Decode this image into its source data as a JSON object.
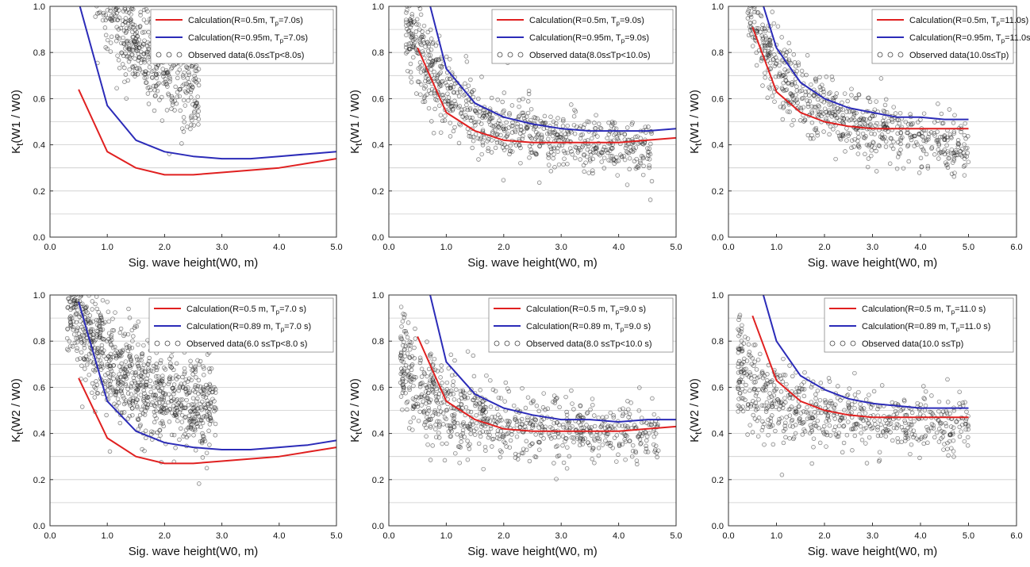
{
  "colors": {
    "red": "#e02020",
    "blue": "#2b2bb8",
    "grid": "#cccccc"
  },
  "chart_data": [
    {
      "type": "scatter",
      "xlabel": "Sig. wave height(W0, m)",
      "ylabel_main": "K",
      "ylabel_sub": "t",
      "ylabel_rest": "(W1 / W0)",
      "xlim": [
        0,
        5
      ],
      "ylim": [
        0,
        1
      ],
      "xticks": [
        0,
        1,
        2,
        3,
        4,
        5
      ],
      "xtick_labels": [
        "0.0",
        "1.0",
        "2.0",
        "3.0",
        "4.0",
        "5.0"
      ],
      "yticks": [
        0,
        0.2,
        0.4,
        0.6,
        0.8,
        1.0
      ],
      "ytick_labels": [
        "0.0",
        "0.2",
        "0.4",
        "0.6",
        "0.8",
        "1.0"
      ],
      "grid_y": [
        0.1,
        0.2,
        0.3,
        0.4,
        0.5,
        0.6,
        0.7,
        0.8,
        0.9
      ],
      "series": [
        {
          "name": "Calculation(R=0.5m, T",
          "sub": "p",
          "name_tail": "=7.0s)",
          "style": "line",
          "color": "red",
          "x": [
            0.5,
            1.0,
            1.5,
            2.0,
            2.5,
            3.0,
            3.5,
            4.0,
            4.5,
            5.0
          ],
          "y": [
            0.64,
            0.37,
            0.3,
            0.27,
            0.27,
            0.28,
            0.29,
            0.3,
            0.32,
            0.34
          ]
        },
        {
          "name": "Calculation(R=0.95m, T",
          "sub": "p",
          "name_tail": "=7.0s)",
          "style": "line",
          "color": "blue",
          "x": [
            0.5,
            1.0,
            1.5,
            2.0,
            2.5,
            3.0,
            3.5,
            4.0,
            4.5,
            5.0
          ],
          "y": [
            1.02,
            0.57,
            0.42,
            0.37,
            0.35,
            0.34,
            0.34,
            0.35,
            0.36,
            0.37
          ]
        },
        {
          "name": "Observed data(6.0s≤Tp<8.0s)",
          "style": "scatter",
          "color": "black",
          "cloud": {
            "x_range": [
              0.1,
              2.6
            ],
            "count": 950,
            "center_a": 1.2,
            "center_b": 1.65,
            "center_c": 0.28,
            "spread": 0.08
          }
        }
      ]
    },
    {
      "type": "scatter",
      "xlabel": "Sig. wave height(W0, m)",
      "ylabel_main": "K",
      "ylabel_sub": "t",
      "ylabel_rest": "(W1 / W0)",
      "xlim": [
        0,
        5
      ],
      "ylim": [
        0,
        1
      ],
      "xticks": [
        0,
        1,
        2,
        3,
        4,
        5
      ],
      "xtick_labels": [
        "0.0",
        "1.0",
        "2.0",
        "3.0",
        "4.0",
        "5.0"
      ],
      "yticks": [
        0,
        0.2,
        0.4,
        0.6,
        0.8,
        1.0
      ],
      "ytick_labels": [
        "0.0",
        "0.2",
        "0.4",
        "0.6",
        "0.8",
        "1.0"
      ],
      "grid_y": [
        0.1,
        0.2,
        0.3,
        0.4,
        0.5,
        0.6,
        0.7,
        0.8,
        0.9
      ],
      "series": [
        {
          "name": "Calculation(R=0.5m, T",
          "sub": "p",
          "name_tail": "=9.0s)",
          "style": "line",
          "color": "red",
          "x": [
            0.5,
            1.0,
            1.5,
            2.0,
            2.5,
            3.0,
            3.5,
            4.0,
            4.5,
            5.0
          ],
          "y": [
            0.82,
            0.54,
            0.46,
            0.42,
            0.41,
            0.41,
            0.41,
            0.41,
            0.42,
            0.43
          ]
        },
        {
          "name": "Calculation(R=0.95m, T",
          "sub": "p",
          "name_tail": "=9.0s)",
          "style": "line",
          "color": "blue",
          "x": [
            0.7,
            1.0,
            1.5,
            2.0,
            2.5,
            3.0,
            3.5,
            4.0,
            4.5,
            5.0
          ],
          "y": [
            1.02,
            0.73,
            0.58,
            0.52,
            0.49,
            0.47,
            0.46,
            0.46,
            0.46,
            0.47
          ]
        },
        {
          "name": "Observed data(8.0s≤Tp<10.0s)",
          "style": "scatter",
          "color": "black",
          "cloud": {
            "x_range": [
              0.3,
              4.6
            ],
            "count": 800,
            "center_a": 0.9,
            "center_b": 1.0,
            "center_c": 0.28,
            "spread": 0.05
          }
        }
      ]
    },
    {
      "type": "scatter",
      "xlabel": "Sig. wave height(W0, m)",
      "ylabel_main": "K",
      "ylabel_sub": "t",
      "ylabel_rest": "(W1 / W0)",
      "xlim": [
        0,
        6
      ],
      "ylim": [
        0,
        1
      ],
      "xticks": [
        0,
        1,
        2,
        3,
        4,
        5,
        6
      ],
      "xtick_labels": [
        "0.0",
        "1.0",
        "2.0",
        "3.0",
        "4.0",
        "5.0",
        "6.0"
      ],
      "yticks": [
        0,
        0.2,
        0.4,
        0.6,
        0.8,
        1.0
      ],
      "ytick_labels": [
        "0.0",
        "0.2",
        "0.4",
        "0.6",
        "0.8",
        "1.0"
      ],
      "grid_y": [
        0.1,
        0.2,
        0.3,
        0.4,
        0.5,
        0.6,
        0.7,
        0.8,
        0.9
      ],
      "series": [
        {
          "name": "Calculation(R=0.5m, T",
          "sub": "p",
          "name_tail": "=11.0s)",
          "style": "line",
          "color": "red",
          "x": [
            0.5,
            1.0,
            1.5,
            2.0,
            2.5,
            3.0,
            3.5,
            4.0,
            4.5,
            5.0
          ],
          "y": [
            0.91,
            0.63,
            0.54,
            0.5,
            0.48,
            0.47,
            0.47,
            0.47,
            0.47,
            0.47
          ]
        },
        {
          "name": "Calculation(R=0.95m, T",
          "sub": "p",
          "name_tail": "=11.0s)",
          "style": "line",
          "color": "blue",
          "x": [
            0.7,
            1.0,
            1.5,
            2.0,
            2.5,
            3.0,
            3.5,
            4.0,
            4.5,
            5.0
          ],
          "y": [
            1.02,
            0.82,
            0.67,
            0.6,
            0.56,
            0.54,
            0.52,
            0.52,
            0.51,
            0.51
          ]
        },
        {
          "name": "Observed data(10.0s≤Tp)",
          "style": "scatter",
          "color": "black",
          "cloud": {
            "x_range": [
              0.4,
              5.0
            ],
            "count": 700,
            "center_a": 0.9,
            "center_b": 1.3,
            "center_c": 0.28,
            "spread": 0.05
          }
        }
      ]
    },
    {
      "type": "scatter",
      "xlabel": "Sig. wave height(W0, m)",
      "ylabel_main": "K",
      "ylabel_sub": "t",
      "ylabel_rest": "(W2 / W0)",
      "xlim": [
        0,
        5
      ],
      "ylim": [
        0,
        1
      ],
      "xticks": [
        0,
        1,
        2,
        3,
        4,
        5
      ],
      "xtick_labels": [
        "0.0",
        "1.0",
        "2.0",
        "3.0",
        "4.0",
        "5.0"
      ],
      "yticks": [
        0,
        0.2,
        0.4,
        0.6,
        0.8,
        1.0
      ],
      "ytick_labels": [
        "0.0",
        "0.2",
        "0.4",
        "0.6",
        "0.8",
        "1.0"
      ],
      "grid_y": [
        0.1,
        0.2,
        0.3,
        0.4,
        0.5,
        0.6,
        0.7,
        0.8,
        0.9
      ],
      "series": [
        {
          "name": "Calculation(R=0.5 m, T",
          "sub": "p",
          "name_tail": "=7.0 s)",
          "style": "line",
          "color": "red",
          "x": [
            0.5,
            1.0,
            1.5,
            2.0,
            2.5,
            3.0,
            3.5,
            4.0,
            4.5,
            5.0
          ],
          "y": [
            0.64,
            0.38,
            0.3,
            0.27,
            0.27,
            0.28,
            0.29,
            0.3,
            0.32,
            0.34
          ]
        },
        {
          "name": "Calculation(R=0.89 m, T",
          "sub": "p",
          "name_tail": "=7.0 s)",
          "style": "line",
          "color": "blue",
          "x": [
            0.5,
            1.0,
            1.5,
            2.0,
            2.5,
            3.0,
            3.5,
            4.0,
            4.5,
            5.0
          ],
          "y": [
            0.97,
            0.54,
            0.41,
            0.36,
            0.34,
            0.33,
            0.33,
            0.34,
            0.35,
            0.37
          ]
        },
        {
          "name": "Observed data(6.0 s≤Tp<8.0 s)",
          "style": "scatter",
          "color": "black",
          "cloud": {
            "x_range": [
              0.3,
              2.9
            ],
            "count": 1000,
            "center_a": 0.7,
            "center_b": 1.5,
            "center_c": 0.32,
            "spread": 0.09
          }
        }
      ]
    },
    {
      "type": "scatter",
      "xlabel": "Sig. wave height(W0, m)",
      "ylabel_main": "K",
      "ylabel_sub": "t",
      "ylabel_rest": "(W2 / W0)",
      "xlim": [
        0,
        5
      ],
      "ylim": [
        0,
        1
      ],
      "xticks": [
        0,
        1,
        2,
        3,
        4,
        5
      ],
      "xtick_labels": [
        "0.0",
        "1.0",
        "2.0",
        "3.0",
        "4.0",
        "5.0"
      ],
      "yticks": [
        0,
        0.2,
        0.4,
        0.6,
        0.8,
        1.0
      ],
      "ytick_labels": [
        "0.0",
        "0.2",
        "0.4",
        "0.6",
        "0.8",
        "1.0"
      ],
      "grid_y": [
        0.1,
        0.2,
        0.3,
        0.4,
        0.5,
        0.6,
        0.7,
        0.8,
        0.9
      ],
      "series": [
        {
          "name": "Calculation(R=0.5 m, T",
          "sub": "p",
          "name_tail": "=9.0 s)",
          "style": "line",
          "color": "red",
          "x": [
            0.5,
            1.0,
            1.5,
            2.0,
            2.5,
            3.0,
            3.5,
            4.0,
            4.5,
            5.0
          ],
          "y": [
            0.82,
            0.54,
            0.46,
            0.42,
            0.41,
            0.41,
            0.41,
            0.41,
            0.42,
            0.43
          ]
        },
        {
          "name": "Calculation(R=0.89 m, T",
          "sub": "p",
          "name_tail": "=9.0 s)",
          "style": "line",
          "color": "blue",
          "x": [
            0.7,
            1.0,
            1.5,
            2.0,
            2.5,
            3.0,
            3.5,
            4.0,
            4.5,
            5.0
          ],
          "y": [
            1.02,
            0.71,
            0.57,
            0.51,
            0.48,
            0.46,
            0.46,
            0.45,
            0.46,
            0.46
          ]
        },
        {
          "name": "Observed data(8.0 s≤Tp<10.0 s)",
          "style": "scatter",
          "color": "black",
          "cloud": {
            "x_range": [
              0.2,
              4.7
            ],
            "count": 800,
            "center_a": 0.5,
            "center_b": 0.8,
            "center_c": 0.36,
            "spread": 0.05
          }
        }
      ]
    },
    {
      "type": "scatter",
      "xlabel": "Sig. wave height(W0, m)",
      "ylabel_main": "K",
      "ylabel_sub": "t",
      "ylabel_rest": "(W2 / W0)",
      "xlim": [
        0,
        6
      ],
      "ylim": [
        0,
        1
      ],
      "xticks": [
        0,
        1,
        2,
        3,
        4,
        5,
        6
      ],
      "xtick_labels": [
        "0.0",
        "1.0",
        "2.0",
        "3.0",
        "4.0",
        "5.0",
        "6.0"
      ],
      "yticks": [
        0,
        0.2,
        0.4,
        0.6,
        0.8,
        1.0
      ],
      "ytick_labels": [
        "0.0",
        "0.2",
        "0.4",
        "0.6",
        "0.8",
        "1.0"
      ],
      "grid_y": [
        0.1,
        0.2,
        0.3,
        0.4,
        0.5,
        0.6,
        0.7,
        0.8,
        0.9
      ],
      "series": [
        {
          "name": "Calculation(R=0.5 m, T",
          "sub": "p",
          "name_tail": "=11.0 s)",
          "style": "line",
          "color": "red",
          "x": [
            0.5,
            1.0,
            1.5,
            2.0,
            2.5,
            3.0,
            3.5,
            4.0,
            4.5,
            5.0
          ],
          "y": [
            0.91,
            0.63,
            0.54,
            0.5,
            0.48,
            0.47,
            0.47,
            0.47,
            0.47,
            0.47
          ]
        },
        {
          "name": "Calculation(R=0.89 m, T",
          "sub": "p",
          "name_tail": "=11.0 s)",
          "style": "line",
          "color": "blue",
          "x": [
            0.7,
            1.0,
            1.5,
            2.0,
            2.5,
            3.0,
            3.5,
            4.0,
            4.5,
            5.0
          ],
          "y": [
            1.02,
            0.8,
            0.65,
            0.59,
            0.55,
            0.53,
            0.52,
            0.51,
            0.51,
            0.51
          ]
        },
        {
          "name": "Observed data(10.0 s≤Tp)",
          "style": "scatter",
          "color": "black",
          "cloud": {
            "x_range": [
              0.2,
              5.0
            ],
            "count": 650,
            "center_a": 0.35,
            "center_b": 1.0,
            "center_c": 0.4,
            "spread": 0.05
          }
        }
      ]
    }
  ]
}
